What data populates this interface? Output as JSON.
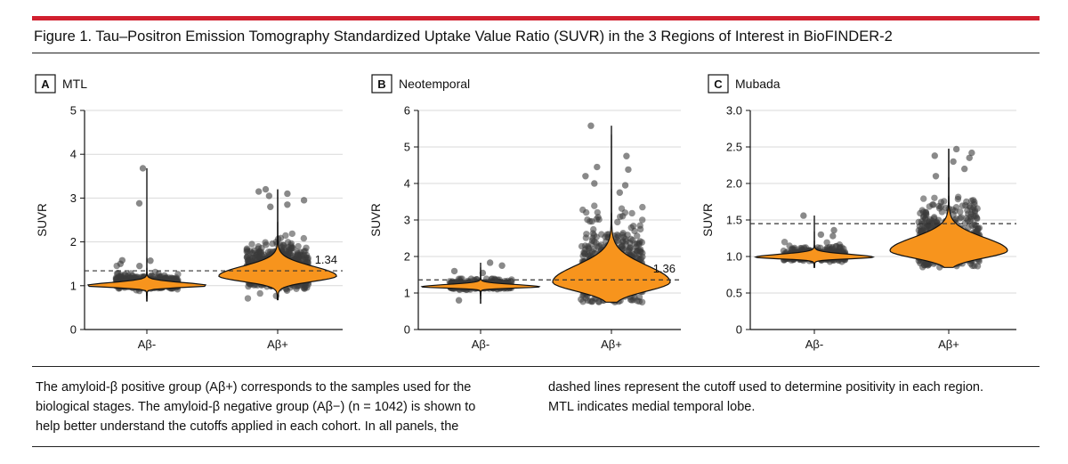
{
  "figure": {
    "title": "Figure 1. Tau–Positron Emission Tomography Standardized Uptake Value Ratio (SUVR) in the 3 Regions of Interest in BioFINDER-2",
    "caption_col1": [
      "The amyloid-β positive group (Aβ+) corresponds to the samples used for the",
      "biological stages. The amyloid-β negative group (Aβ−) (n = 1042) is shown to",
      "help better understand the cutoffs applied in each cohort. In all panels, the"
    ],
    "caption_col2": [
      "dashed lines represent the cutoff used to determine positivity in each region.",
      "MTL indicates medial temporal lobe."
    ]
  },
  "colors": {
    "accent_bar": "#d1202f",
    "violin_fill": "#f7941d",
    "points": "#3a3a3a",
    "grid": "#d9d9d9"
  },
  "chart_data": [
    {
      "type": "violin",
      "panel": "A",
      "title": "MTL",
      "ylabel": "SUVR",
      "categories": [
        "Aβ-",
        "Aβ+"
      ],
      "yticks": [
        0,
        1,
        2,
        3,
        4,
        5
      ],
      "ytick_labels": [
        "0",
        "1",
        "2",
        "3",
        "4",
        "5"
      ],
      "ylim": [
        0,
        5
      ],
      "cutoff": 1.34,
      "cutoff_label": "1.34",
      "groups": [
        {
          "name": "Aβ-",
          "min": 0.65,
          "max": 3.68,
          "mode": 1.0,
          "spread": 0.07,
          "npoints": 420,
          "outliers": [
            3.68,
            2.88,
            1.58,
            1.57,
            1.5,
            1.45
          ]
        },
        {
          "name": "Aβ+",
          "min": 0.68,
          "max": 3.2,
          "mode": 1.22,
          "spread": 0.22,
          "npoints": 700,
          "outliers": [
            3.2,
            3.15,
            3.1,
            3.05,
            2.95,
            2.85,
            2.8
          ]
        }
      ]
    },
    {
      "type": "violin",
      "panel": "B",
      "title": "Neotemporal",
      "ylabel": "SUVR",
      "categories": [
        "Aβ-",
        "Aβ+"
      ],
      "yticks": [
        0,
        1,
        2,
        3,
        4,
        5,
        6
      ],
      "ytick_labels": [
        "0",
        "1",
        "2",
        "3",
        "4",
        "5",
        "6"
      ],
      "ylim": [
        0,
        6
      ],
      "cutoff": 1.36,
      "cutoff_label": "1.36",
      "groups": [
        {
          "name": "Aβ-",
          "min": 0.72,
          "max": 1.83,
          "mode": 1.17,
          "spread": 0.06,
          "npoints": 380,
          "outliers": [
            1.83,
            1.75,
            1.6,
            1.55,
            0.8
          ]
        },
        {
          "name": "Aβ+",
          "min": 0.75,
          "max": 5.58,
          "mode": 1.3,
          "spread": 0.45,
          "npoints": 650,
          "outliers": [
            5.58,
            4.75,
            4.45,
            4.38,
            4.2,
            4.0,
            3.95,
            3.75
          ]
        }
      ]
    },
    {
      "type": "violin",
      "panel": "C",
      "title": "Mubada",
      "ylabel": "SUVR",
      "categories": [
        "Aβ-",
        "Aβ+"
      ],
      "yticks": [
        0,
        0.5,
        1.0,
        1.5,
        2.0,
        2.5,
        3.0
      ],
      "ytick_labels": [
        "0",
        "0.5",
        "1.0",
        "1.5",
        "2.0",
        "2.5",
        "3.0"
      ],
      "ylim": [
        0,
        3.0
      ],
      "cutoff": 1.45,
      "cutoff_label": "",
      "groups": [
        {
          "name": "Aβ-",
          "min": 0.85,
          "max": 1.56,
          "mode": 0.99,
          "spread": 0.04,
          "npoints": 380,
          "outliers": [
            1.56,
            1.36,
            1.3,
            1.28
          ]
        },
        {
          "name": "Aβ+",
          "min": 0.85,
          "max": 2.47,
          "mode": 1.08,
          "spread": 0.18,
          "npoints": 650,
          "outliers": [
            2.47,
            2.42,
            2.38,
            2.35,
            2.3,
            2.2,
            2.1
          ]
        }
      ]
    }
  ]
}
